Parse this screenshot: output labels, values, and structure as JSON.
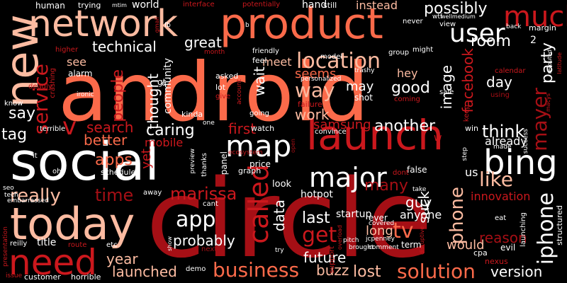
{
  "word_cloud": {
    "background_color": "#000000",
    "palette": [
      "#fee0d2",
      "#fcbba1",
      "#fc9272",
      "#fb6a4a",
      "#ef3b2c",
      "#cb181d",
      "#a50f15",
      "#67000d"
    ],
    "words": [
      {
        "text": "android",
        "color": "#fb6a4a"
      },
      {
        "text": "circle",
        "color": "#a50f15"
      },
      {
        "text": "social",
        "color": "#ffffff"
      },
      {
        "text": "network",
        "color": "#fcbba1"
      },
      {
        "text": "product",
        "color": "#fb6a4a"
      },
      {
        "text": "new",
        "color": "#fcbba1"
      },
      {
        "text": "launch",
        "color": "#cb181d"
      },
      {
        "text": "today",
        "color": "#fcbba1"
      },
      {
        "text": "much",
        "color": "#cb181d"
      },
      {
        "text": "bing",
        "color": "#ffffff"
      },
      {
        "text": "need",
        "color": "#cb181d"
      },
      {
        "text": "user",
        "color": "#ffffff"
      },
      {
        "text": "location",
        "color": "#fcbba1"
      },
      {
        "text": "map",
        "color": "#ffffff"
      },
      {
        "text": "major",
        "color": "#ffffff"
      },
      {
        "text": "called",
        "color": "#cb181d"
      },
      {
        "text": "business",
        "color": "#fb6a4a"
      },
      {
        "text": "solution",
        "color": "#fb6a4a"
      },
      {
        "text": "iphone",
        "color": "#ffffff"
      },
      {
        "text": "mayer",
        "color": "#a50f15"
      },
      {
        "text": "service",
        "color": "#cb181d"
      },
      {
        "text": "technical",
        "color": "#ffffff"
      },
      {
        "text": "great",
        "color": "#ffffff"
      },
      {
        "text": "way",
        "color": "#fcbba1"
      },
      {
        "text": "possibly",
        "color": "#ffffff"
      },
      {
        "text": "first",
        "color": "#cb181d"
      },
      {
        "text": "another",
        "color": "#ffffff"
      },
      {
        "text": "think",
        "color": "#ffffff"
      },
      {
        "text": "like",
        "color": "#fcbba1"
      },
      {
        "text": "phone",
        "color": "#fcbba1"
      },
      {
        "text": "app",
        "color": "#ffffff"
      },
      {
        "text": "get",
        "color": "#cb181d"
      },
      {
        "text": "tv",
        "color": "#fb6a4a"
      },
      {
        "text": "time",
        "color": "#a50f15"
      },
      {
        "text": "marissa",
        "color": "#cb181d"
      },
      {
        "text": "really",
        "color": "#fcbba1"
      },
      {
        "text": "launched",
        "color": "#fcbba1"
      },
      {
        "text": "year",
        "color": "#fcbba1"
      },
      {
        "text": "probably",
        "color": "#ffffff"
      },
      {
        "text": "lost",
        "color": "#fcbba1"
      },
      {
        "text": "buzz",
        "color": "#fcbba1"
      },
      {
        "text": "future",
        "color": "#ffffff"
      },
      {
        "text": "apps",
        "color": "#fb6a4a"
      },
      {
        "text": "people",
        "color": "#cb181d"
      },
      {
        "text": "caring",
        "color": "#ffffff"
      },
      {
        "text": "better",
        "color": "#fb6a4a"
      },
      {
        "text": "search",
        "color": "#cb181d"
      },
      {
        "text": "v",
        "color": "#cb181d"
      },
      {
        "text": "say",
        "color": "#ffffff"
      },
      {
        "text": "tag",
        "color": "#ffffff"
      },
      {
        "text": "work",
        "color": "#fcbba1"
      },
      {
        "text": "seems",
        "color": "#fb6a4a"
      },
      {
        "text": "may",
        "color": "#ffffff"
      },
      {
        "text": "good",
        "color": "#ffffff"
      },
      {
        "text": "image",
        "color": "#ffffff"
      },
      {
        "text": "facebook",
        "color": "#cb181d"
      },
      {
        "text": "day",
        "color": "#ffffff"
      },
      {
        "text": "room",
        "color": "#ffffff"
      },
      {
        "text": "party",
        "color": "#ffffff"
      },
      {
        "text": "suck",
        "color": "#ffffff"
      },
      {
        "text": "guy",
        "color": "#ffffff"
      },
      {
        "text": "many",
        "color": "#a50f15"
      },
      {
        "text": "last",
        "color": "#ffffff"
      },
      {
        "text": "data",
        "color": "#ffffff"
      },
      {
        "text": "long",
        "color": "#fcbba1"
      },
      {
        "text": "reason",
        "color": "#a50f15"
      },
      {
        "text": "would",
        "color": "#fcbba1"
      },
      {
        "text": "version",
        "color": "#ffffff"
      },
      {
        "text": "already",
        "color": "#ffffff"
      },
      {
        "text": "us",
        "color": "#ffffff"
      },
      {
        "text": "samsung",
        "color": "#cb181d"
      },
      {
        "text": "wait",
        "color": "#ffffff"
      },
      {
        "text": "meet",
        "color": "#fcbba1"
      },
      {
        "text": "thought",
        "color": "#ffffff"
      },
      {
        "text": "yet",
        "color": "#cb181d"
      },
      {
        "text": "mobile",
        "color": "#cb181d"
      },
      {
        "text": "see",
        "color": "#fcbba1"
      },
      {
        "text": "instead",
        "color": "#fcbba1"
      },
      {
        "text": "hey",
        "color": "#fcbba1"
      },
      {
        "text": "anyone",
        "color": "#ffffff"
      },
      {
        "text": "startup",
        "color": "#ffffff"
      },
      {
        "text": "hotpot",
        "color": "#ffffff"
      },
      {
        "text": "innovation",
        "color": "#cb181d"
      },
      {
        "text": "community",
        "color": "#ffffff"
      },
      {
        "text": "hand",
        "color": "#ffffff"
      },
      {
        "text": "human",
        "color": "#ffffff"
      },
      {
        "text": "world",
        "color": "#ffffff"
      },
      {
        "text": "alarm",
        "color": "#ffffff"
      },
      {
        "text": "trying",
        "color": "#ffffff"
      },
      {
        "text": "still",
        "color": "#ffffff"
      },
      {
        "text": "look",
        "color": "#ffffff"
      },
      {
        "text": "price",
        "color": "#ffffff"
      },
      {
        "text": "graph",
        "color": "#ffffff"
      },
      {
        "text": "schedule",
        "color": "#ffffff"
      },
      {
        "text": "title",
        "color": "#ffffff"
      },
      {
        "text": "customer",
        "color": "#ffffff"
      },
      {
        "text": "horrible",
        "color": "#ffffff"
      },
      {
        "text": "demo",
        "color": "#ffffff"
      },
      {
        "text": "ever",
        "color": "#ffffff"
      },
      {
        "text": "term",
        "color": "#ffffff"
      },
      {
        "text": "support",
        "color": "#cb181d"
      },
      {
        "text": "nexus",
        "color": "#cb181d"
      },
      {
        "text": "cpa",
        "color": "#ffffff"
      },
      {
        "text": "evil",
        "color": "#ffffff"
      },
      {
        "text": "structured",
        "color": "#ffffff"
      },
      {
        "text": "launching",
        "color": "#ffffff"
      },
      {
        "text": "asked",
        "color": "#ffffff"
      },
      {
        "text": "lot",
        "color": "#ffffff"
      },
      {
        "text": "feel",
        "color": "#ffffff"
      },
      {
        "text": "kinda",
        "color": "#ffffff"
      },
      {
        "text": "going",
        "color": "#ffffff"
      },
      {
        "text": "watch",
        "color": "#ffffff"
      },
      {
        "text": "convince",
        "color": "#ffffff"
      },
      {
        "text": "false",
        "color": "#ffffff"
      },
      {
        "text": "margin",
        "color": "#ffffff"
      },
      {
        "text": "sale",
        "color": "#ffffff"
      },
      {
        "text": "eat",
        "color": "#ffffff"
      },
      {
        "text": "friendly",
        "color": "#ffffff"
      },
      {
        "text": "personalized",
        "color": "#ffffff"
      },
      {
        "text": "shot",
        "color": "#ffffff"
      },
      {
        "text": "failure",
        "color": "#cb181d"
      },
      {
        "text": "coming",
        "color": "#cb181d"
      },
      {
        "text": "trashy",
        "color": "#ffffff"
      },
      {
        "text": "model",
        "color": "#ffffff"
      },
      {
        "text": "group",
        "color": "#ffffff"
      },
      {
        "text": "might",
        "color": "#ffffff"
      },
      {
        "text": "never",
        "color": "#ffffff"
      },
      {
        "text": "view",
        "color": "#ffffff"
      },
      {
        "text": "back",
        "color": "#ffffff"
      },
      {
        "text": "calendar",
        "color": "#cb181d"
      },
      {
        "text": "using",
        "color": "#a50f15"
      },
      {
        "text": "deadly",
        "color": "#cb181d"
      },
      {
        "text": "crashing",
        "color": "#cb181d"
      },
      {
        "text": "higher",
        "color": "#cb181d"
      },
      {
        "text": "know",
        "color": "#ffffff"
      },
      {
        "text": "terrible",
        "color": "#ffffff"
      },
      {
        "text": "tech",
        "color": "#ffffff"
      },
      {
        "text": "seo",
        "color": "#ffffff"
      },
      {
        "text": "embarrassed",
        "color": "#ffffff"
      },
      {
        "text": "reilly",
        "color": "#ffffff"
      },
      {
        "text": "presentation",
        "color": "#cb181d"
      },
      {
        "text": "issue",
        "color": "#cb181d"
      },
      {
        "text": "etc",
        "color": "#ffffff"
      },
      {
        "text": "route",
        "color": "#cb181d"
      },
      {
        "text": "next",
        "color": "#a50f15"
      },
      {
        "text": "brought",
        "color": "#ffffff"
      },
      {
        "text": "comment",
        "color": "#ffffff"
      },
      {
        "text": "jcpenney",
        "color": "#ffffff"
      },
      {
        "text": "pitch",
        "color": "#ffffff"
      },
      {
        "text": "covered",
        "color": "#ffffff"
      },
      {
        "text": "dont",
        "color": "#cb181d"
      },
      {
        "text": "cant",
        "color": "#ffffff"
      },
      {
        "text": "away",
        "color": "#ffffff"
      },
      {
        "text": "thanks",
        "color": "#ffffff"
      },
      {
        "text": "preview",
        "color": "#ffffff"
      },
      {
        "text": "ecosystem",
        "color": "#cb181d"
      },
      {
        "text": "panel",
        "color": "#ffffff"
      },
      {
        "text": "win",
        "color": "#ffffff"
      },
      {
        "text": "made",
        "color": "#ffffff"
      },
      {
        "text": "step",
        "color": "#ffffff"
      },
      {
        "text": "success",
        "color": "#ffffff"
      },
      {
        "text": "keep",
        "color": "#cb181d"
      },
      {
        "text": "interface",
        "color": "#cb181d"
      },
      {
        "text": "potentially",
        "color": "#cb181d"
      },
      {
        "text": "month",
        "color": "#cb181d"
      },
      {
        "text": "ironic",
        "color": "#ffffff"
      },
      {
        "text": "give",
        "color": "#cb181d"
      },
      {
        "text": "account",
        "color": "#cb181d"
      },
      {
        "text": "fb",
        "color": "#ffffff"
      },
      {
        "text": "gt",
        "color": "#ffffff"
      },
      {
        "text": "q",
        "color": "#ffffff"
      },
      {
        "text": "b",
        "color": "#ffffff"
      },
      {
        "text": "one",
        "color": "#ffffff"
      },
      {
        "text": "oh",
        "color": "#ffffff"
      },
      {
        "text": "w",
        "color": "#cb181d"
      },
      {
        "text": "2",
        "color": "#ffffff"
      },
      {
        "text": "mtim",
        "color": "#ffffff"
      },
      {
        "text": "wtf",
        "color": "#ffffff"
      },
      {
        "text": "wellmedium",
        "color": "#ffffff"
      },
      {
        "text": "rerouted",
        "color": "#ffffff"
      },
      {
        "text": "latitude",
        "color": "#cb181d"
      },
      {
        "text": "macys",
        "color": "#cb181d"
      },
      {
        "text": "take",
        "color": "#ffffff"
      },
      {
        "text": "show",
        "color": "#ffffff"
      },
      {
        "text": "try",
        "color": "#ffffff"
      },
      {
        "text": "gmail",
        "color": "#cb181d"
      },
      {
        "text": "it",
        "color": "#ffffff"
      },
      {
        "text": "overload",
        "color": "#cb181d"
      },
      {
        "text": "disruptive",
        "color": "#cb181d"
      },
      {
        "text": "open",
        "color": "#a50f15"
      }
    ]
  }
}
